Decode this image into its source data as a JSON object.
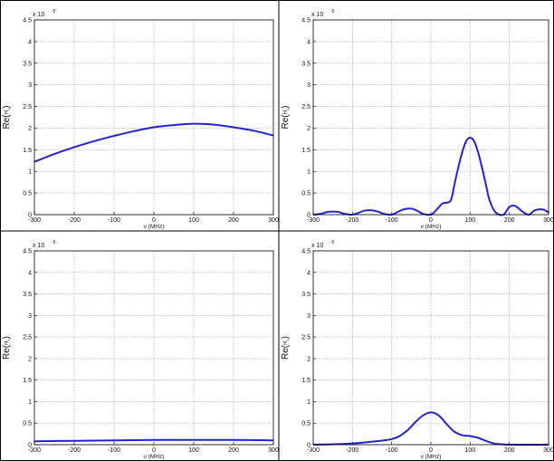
{
  "chart_data": [
    {
      "type": "line",
      "xlabel": "ν (MHz)",
      "ylabel_main": "Re(",
      "ylabel_sub": "H",
      "ylabel_subsub": "1",
      "ylabel_close": ")",
      "multiplier": "x 10",
      "multiplier_exp": "-5",
      "xlim": [
        -300,
        300
      ],
      "ylim": [
        0,
        4.5
      ],
      "xticks": [
        "-300",
        "-200",
        "-100",
        "0",
        "100",
        "200",
        "300"
      ],
      "yticks": [
        "0",
        "0.5",
        "1",
        "1.5",
        "2",
        "2.5",
        "3",
        "3.5",
        "4",
        "4.5"
      ],
      "grid": true,
      "series": [
        {
          "color": "#2323d6",
          "x": [
            -300,
            -250,
            -200,
            -150,
            -100,
            -50,
            0,
            50,
            100,
            150,
            200,
            250,
            300
          ],
          "y": [
            1.22,
            1.4,
            1.56,
            1.7,
            1.82,
            1.93,
            2.02,
            2.07,
            2.1,
            2.08,
            2.02,
            1.94,
            1.83
          ]
        }
      ]
    },
    {
      "type": "line",
      "xlabel": "ν (MHz)",
      "ylabel_main": "Re(",
      "ylabel_sub": "H",
      "ylabel_subsub": "1",
      "ylabel_close": ")",
      "multiplier": "x 10",
      "multiplier_exp": "-5",
      "xlim": [
        -300,
        300
      ],
      "ylim": [
        0,
        4.5
      ],
      "xticks": [
        "-300",
        "-200",
        "-100",
        "0",
        "100",
        "200",
        "300"
      ],
      "yticks": [
        "0",
        "0.5",
        "1",
        "1.5",
        "2",
        "2.5",
        "3",
        "3.5",
        "4",
        "4.5"
      ],
      "grid": true,
      "series": [
        {
          "color": "#2323d6",
          "x": [
            -300,
            -280,
            -265,
            -250,
            -235,
            -220,
            -200,
            -185,
            -170,
            -150,
            -135,
            -120,
            -100,
            -85,
            -70,
            -50,
            -35,
            -20,
            0,
            15,
            30,
            50,
            60,
            70,
            80,
            90,
            100,
            110,
            120,
            130,
            140,
            150,
            165,
            185,
            200,
            215,
            235,
            250,
            265,
            285,
            300
          ],
          "y": [
            0.0,
            0.02,
            0.06,
            0.07,
            0.06,
            0.02,
            0.0,
            0.04,
            0.09,
            0.1,
            0.07,
            0.02,
            0.0,
            0.06,
            0.12,
            0.14,
            0.09,
            0.02,
            0.0,
            0.12,
            0.26,
            0.32,
            0.7,
            1.1,
            1.45,
            1.7,
            1.78,
            1.7,
            1.45,
            1.1,
            0.7,
            0.32,
            0.05,
            0.0,
            0.18,
            0.2,
            0.06,
            0.0,
            0.1,
            0.12,
            0.05
          ]
        }
      ]
    },
    {
      "type": "line",
      "xlabel": "ν (MHz)",
      "ylabel_main": "Re(",
      "ylabel_sub": "H",
      "ylabel_subsub": "2",
      "ylabel_close": ")",
      "multiplier": "x 10",
      "multiplier_exp": "-5",
      "xlim": [
        -300,
        300
      ],
      "ylim": [
        0,
        4.5
      ],
      "xticks": [
        "-300",
        "-200",
        "-100",
        "0",
        "100",
        "200",
        "300"
      ],
      "yticks": [
        "0",
        "0.5",
        "1",
        "1.5",
        "2",
        "2.5",
        "3",
        "3.5",
        "4",
        "4.5"
      ],
      "grid": true,
      "series": [
        {
          "color": "#2323d6",
          "x": [
            -300,
            -200,
            -100,
            0,
            100,
            200,
            300
          ],
          "y": [
            0.08,
            0.09,
            0.1,
            0.11,
            0.11,
            0.11,
            0.1
          ]
        }
      ]
    },
    {
      "type": "line",
      "xlabel": "ν (MHz)",
      "ylabel_main": "Re(",
      "ylabel_sub": "H",
      "ylabel_subsub": "2",
      "ylabel_close": ")",
      "multiplier": "x 10",
      "multiplier_exp": "-5",
      "xlim": [
        -300,
        300
      ],
      "ylim": [
        0,
        4.5
      ],
      "xticks": [
        "-300",
        "-200",
        "-100",
        "0",
        "100",
        "200",
        "300"
      ],
      "yticks": [
        "0",
        "0.5",
        "1",
        "1.5",
        "2",
        "2.5",
        "3",
        "3.5",
        "4",
        "4.5"
      ],
      "grid": true,
      "series": [
        {
          "color": "#2323d6",
          "x": [
            -300,
            -250,
            -200,
            -150,
            -120,
            -100,
            -80,
            -60,
            -40,
            -20,
            0,
            20,
            40,
            60,
            80,
            100,
            120,
            140,
            160,
            180,
            200,
            250,
            300
          ],
          "y": [
            0.0,
            0.01,
            0.03,
            0.07,
            0.1,
            0.13,
            0.2,
            0.33,
            0.52,
            0.68,
            0.75,
            0.68,
            0.48,
            0.3,
            0.22,
            0.2,
            0.16,
            0.09,
            0.03,
            0.01,
            0.0,
            0.0,
            0.0
          ]
        }
      ]
    }
  ]
}
